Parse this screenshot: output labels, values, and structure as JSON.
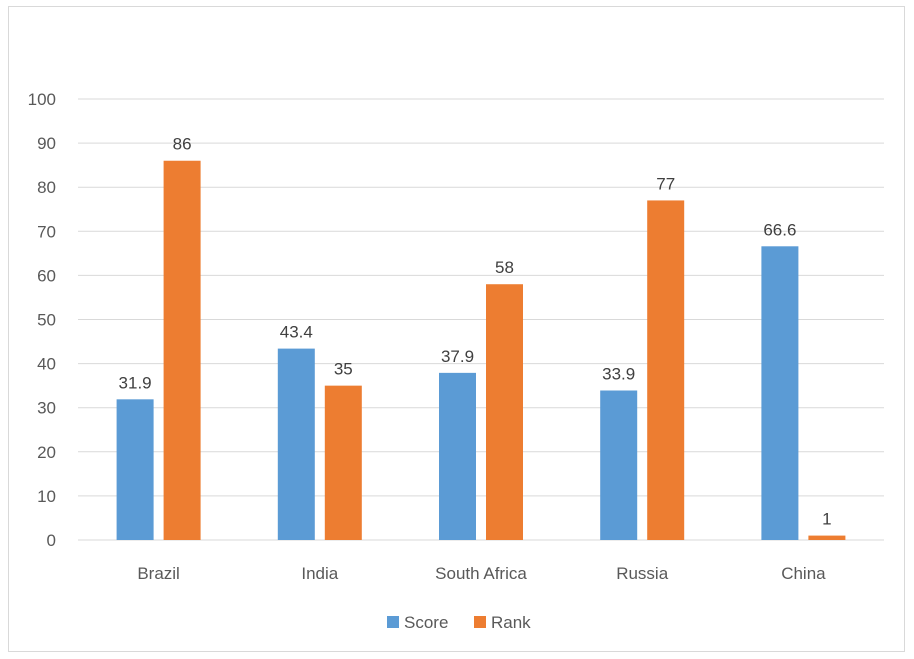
{
  "chart_data": {
    "type": "bar",
    "categories": [
      "Brazil",
      "India",
      "South Africa",
      "Russia",
      "China"
    ],
    "series": [
      {
        "name": "Score",
        "values": [
          31.9,
          43.4,
          37.9,
          33.9,
          66.6
        ],
        "color": "#5b9bd5"
      },
      {
        "name": "Rank",
        "values": [
          86,
          35,
          58,
          77,
          1
        ],
        "color": "#ed7d31"
      }
    ],
    "yticks": [
      "0",
      "10",
      "20",
      "30",
      "40",
      "50",
      "60",
      "70",
      "80",
      "90",
      "100"
    ],
    "ylim": [
      0,
      100
    ],
    "grid": true,
    "legend": "bottom"
  }
}
